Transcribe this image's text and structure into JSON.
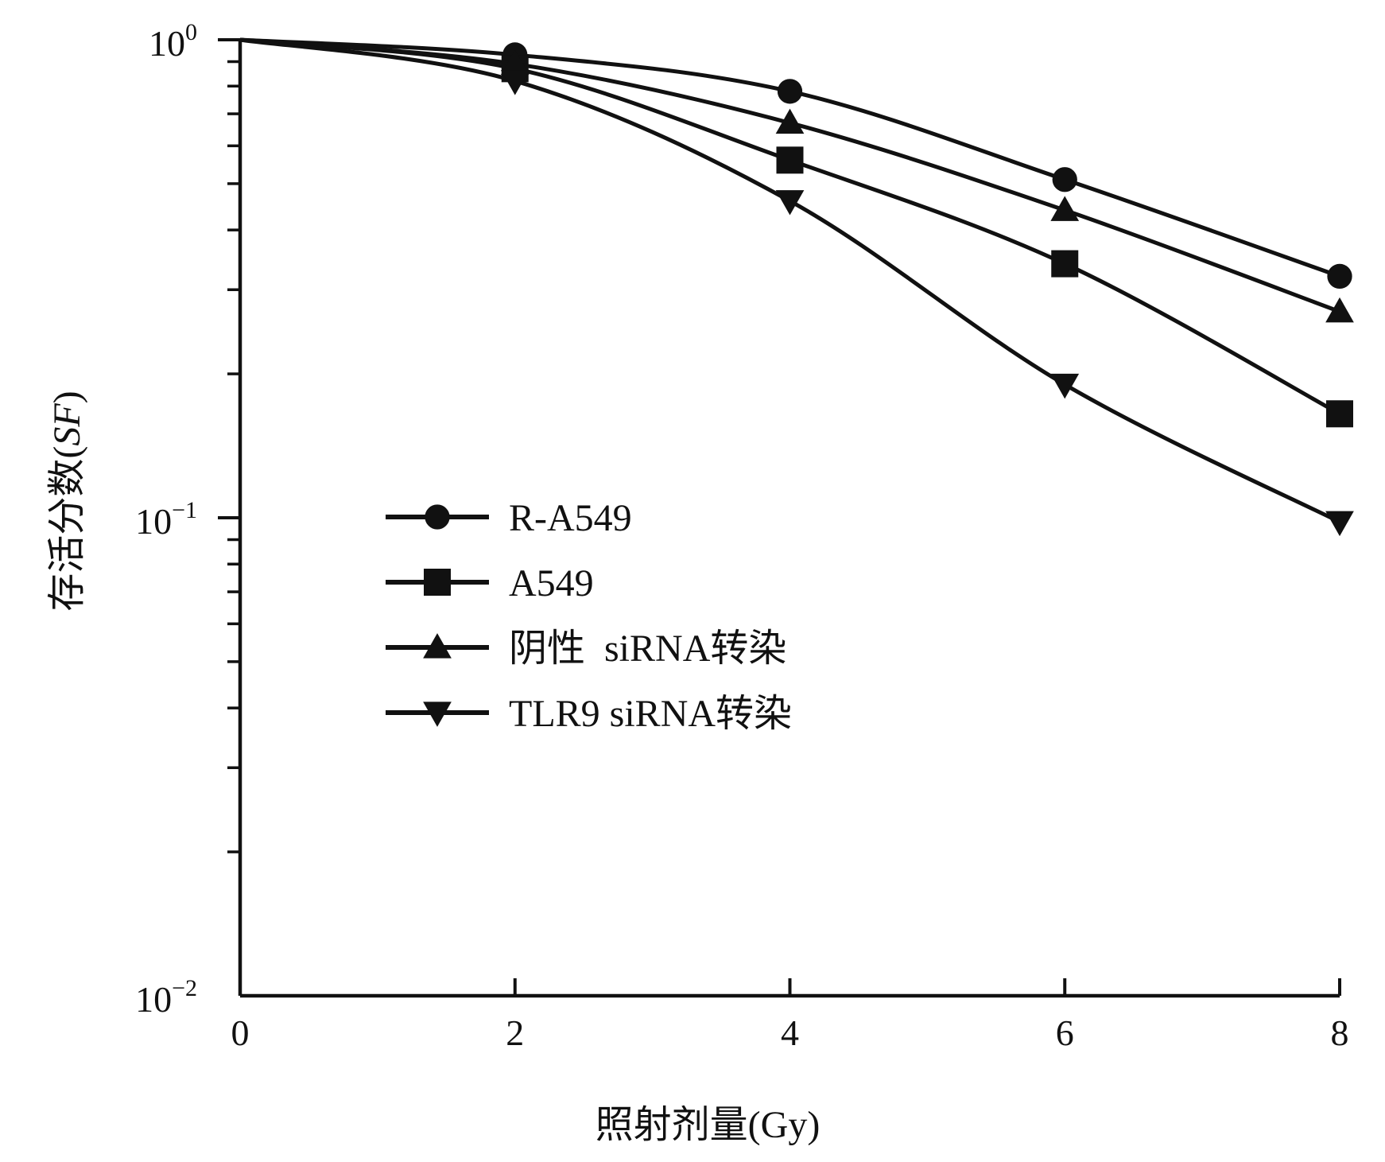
{
  "chart_data": {
    "type": "line",
    "title": "",
    "xlabel": "照射剂量(Gy)",
    "ylabel": "存活分数(SF)",
    "ylabel_parts": {
      "prefix": "存活分数(",
      "italic": "SF",
      "suffix": ")"
    },
    "xscale": "linear",
    "yscale": "log",
    "xlim": [
      0,
      8
    ],
    "ylim": [
      0.01,
      1
    ],
    "x_ticks": [
      "0",
      "2",
      "4",
      "6",
      "8"
    ],
    "y_ticks": [
      {
        "value": 1,
        "base": "10",
        "exp": "0"
      },
      {
        "value": 0.1,
        "base": "10",
        "exp": "−1"
      },
      {
        "value": 0.01,
        "base": "10",
        "exp": "−2"
      }
    ],
    "grid": false,
    "legend_position": "center-left",
    "x": [
      0,
      2,
      4,
      6,
      8
    ],
    "series": [
      {
        "name": "R-A549",
        "marker": "circle",
        "values": [
          1.0,
          0.93,
          0.78,
          0.51,
          0.32
        ]
      },
      {
        "name": "A549",
        "marker": "square",
        "values": [
          1.0,
          0.87,
          0.56,
          0.34,
          0.165
        ]
      },
      {
        "name": "阴性  siRNA转染",
        "marker": "triangle-up",
        "values": [
          1.0,
          0.89,
          0.67,
          0.44,
          0.27
        ]
      },
      {
        "name": "TLR9 siRNA转染",
        "marker": "triangle-down",
        "values": [
          1.0,
          0.82,
          0.46,
          0.19,
          0.098
        ]
      }
    ]
  },
  "colors": {
    "line": "#111111",
    "background": "#ffffff"
  }
}
